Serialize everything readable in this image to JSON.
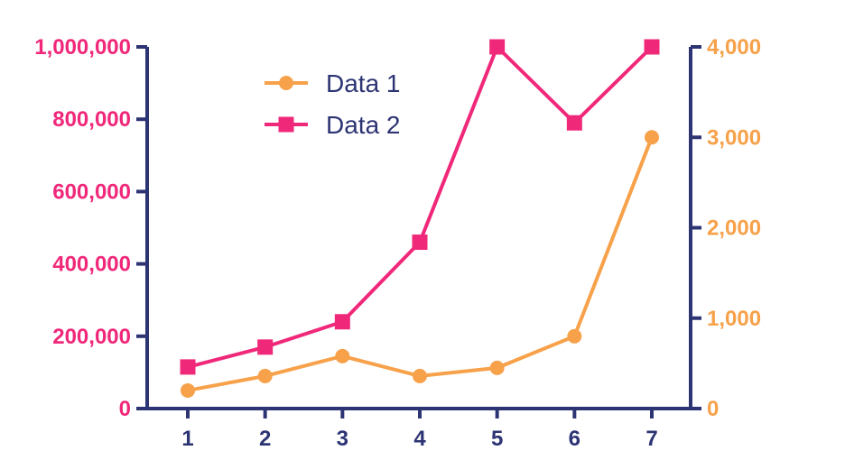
{
  "chart_data": {
    "type": "line",
    "title": "",
    "xlabel": "",
    "ylabel": "",
    "x": [
      1,
      2,
      3,
      4,
      5,
      6,
      7
    ],
    "x_ticks": [
      "1",
      "2",
      "3",
      "4",
      "5",
      "6",
      "7"
    ],
    "y_left": {
      "range": [
        0,
        1000000
      ],
      "ticks": [
        0,
        200000,
        400000,
        600000,
        800000,
        1000000
      ],
      "tick_labels": [
        "0",
        "200,000",
        "400,000",
        "600,000",
        "800,000",
        "1,000,000"
      ],
      "color": "#f0287a"
    },
    "y_right": {
      "range": [
        0,
        4000
      ],
      "ticks": [
        0,
        1000,
        2000,
        3000,
        4000
      ],
      "tick_labels": [
        "0",
        "1,000",
        "2,000",
        "3,000",
        "4,000"
      ],
      "color": "#f7a14a"
    },
    "series": [
      {
        "name": "Data 1",
        "axis": "right",
        "marker": "circle",
        "color": "#f7a14a",
        "values": [
          200,
          360,
          580,
          360,
          450,
          800,
          3000
        ]
      },
      {
        "name": "Data 2",
        "axis": "left",
        "marker": "square",
        "color": "#f0287a",
        "values": [
          115000,
          170000,
          240000,
          460000,
          1000000,
          790000,
          1000000
        ]
      }
    ],
    "axis_color": "#2d3473",
    "grid": false,
    "legend_position": "top-left"
  }
}
